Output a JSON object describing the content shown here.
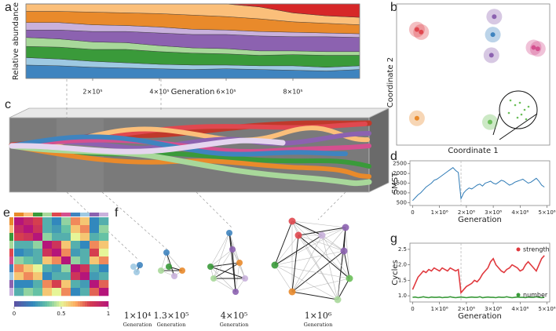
{
  "chart_data": [
    {
      "type": "stream",
      "panel": "a",
      "ylabel": "Relative abundance",
      "xlabel": "Generation",
      "xlim": [
        0,
        1000000
      ],
      "ylim": [
        0,
        1
      ],
      "xticks": [
        {
          "value": 200000,
          "label": "2×10⁵"
        },
        {
          "value": 400000,
          "label": "4×10⁵"
        },
        {
          "value": 600000,
          "label": "6×10⁵"
        },
        {
          "value": 800000,
          "label": "8×10⁵"
        }
      ],
      "x": [
        0,
        100000,
        200000,
        300000,
        400000,
        500000,
        600000,
        700000,
        800000,
        900000,
        1000000
      ],
      "series": [
        {
          "color": "#3f84bf",
          "values": [
            0.18,
            0.17,
            0.15,
            0.14,
            0.13,
            0.12,
            0.13,
            0.12,
            0.11,
            0.1,
            0.12
          ]
        },
        {
          "color": "#9ec9e2",
          "values": [
            0.1,
            0.09,
            0.08,
            0.07,
            0.06,
            0.06,
            0.05,
            0.05,
            0.06,
            0.05,
            0.05
          ]
        },
        {
          "color": "#3a9a3a",
          "values": [
            0.15,
            0.16,
            0.16,
            0.18,
            0.17,
            0.16,
            0.15,
            0.14,
            0.15,
            0.16,
            0.14
          ]
        },
        {
          "color": "#a8d89a",
          "values": [
            0.12,
            0.11,
            0.1,
            0.09,
            0.08,
            0.07,
            0.07,
            0.06,
            0.05,
            0.05,
            0.05
          ]
        },
        {
          "color": "#8c62b0",
          "values": [
            0.1,
            0.12,
            0.14,
            0.15,
            0.17,
            0.18,
            0.19,
            0.2,
            0.19,
            0.2,
            0.19
          ]
        },
        {
          "color": "#c9b1dc",
          "values": [
            0.1,
            0.1,
            0.09,
            0.08,
            0.08,
            0.07,
            0.06,
            0.06,
            0.06,
            0.05,
            0.05
          ]
        },
        {
          "color": "#e98a2b",
          "values": [
            0.15,
            0.15,
            0.17,
            0.17,
            0.18,
            0.19,
            0.18,
            0.17,
            0.14,
            0.13,
            0.12
          ]
        },
        {
          "color": "#fbbf7a",
          "values": [
            0.1,
            0.1,
            0.11,
            0.12,
            0.13,
            0.15,
            0.17,
            0.16,
            0.12,
            0.1,
            0.1
          ]
        },
        {
          "color": "#d62728",
          "values": [
            0,
            0,
            0,
            0,
            0,
            0,
            0,
            0.04,
            0.12,
            0.16,
            0.18
          ]
        }
      ]
    },
    {
      "type": "scatter",
      "panel": "b",
      "xlabel": "Coordinate 1",
      "ylabel": "Coordinate 2",
      "xlim": [
        0,
        10
      ],
      "ylim": [
        0,
        10
      ],
      "x": [
        1.0,
        1.3,
        6.5,
        6.4,
        6.3,
        9.3,
        9.6,
        1.0,
        6.2
      ],
      "y": [
        8.5,
        8.3,
        9.5,
        8.1,
        6.5,
        7.1,
        7.0,
        1.6,
        1.3
      ],
      "colors": [
        "#e0484f",
        "#e0484f",
        "#8c62b0",
        "#3f84bf",
        "#8c62b0",
        "#d4508f",
        "#d4508f",
        "#e98a2b",
        "#6cbf5a"
      ]
    },
    {
      "type": "illustration",
      "panel": "c"
    },
    {
      "type": "line",
      "panel": "d",
      "xlabel": "Generation",
      "ylabel": "SMST",
      "xlim": [
        -100000,
        5100000
      ],
      "ylim": [
        350,
        2650
      ],
      "vline": 1800000,
      "xticks": [
        0,
        {
          "value": 1000000,
          "label": "1×10⁶"
        },
        {
          "value": 2000000,
          "label": "2×10⁶"
        },
        {
          "value": 3000000,
          "label": "3×10⁶"
        },
        {
          "value": 4000000,
          "label": "4×10⁶"
        },
        {
          "value": 5000000,
          "label": "5×10⁶"
        }
      ],
      "yticks": [
        500,
        1000,
        1500,
        2000,
        2500
      ],
      "x": [
        0,
        100000,
        200000,
        300000,
        400000,
        500000,
        600000,
        700000,
        800000,
        900000,
        1000000,
        1100000,
        1200000,
        1300000,
        1400000,
        1500000,
        1600000,
        1700000,
        1800000,
        1900000,
        2000000,
        2100000,
        2200000,
        2300000,
        2400000,
        2500000,
        2600000,
        2700000,
        2800000,
        2900000,
        3000000,
        3100000,
        3200000,
        3300000,
        3400000,
        3500000,
        3600000,
        3700000,
        3800000,
        3900000,
        4000000,
        4100000,
        4200000,
        4300000,
        4400000,
        4500000,
        4600000,
        4700000,
        4800000,
        4900000
      ],
      "series": [
        {
          "color": "#2f7bb6",
          "values": [
            600,
            750,
            900,
            1000,
            1150,
            1300,
            1400,
            1500,
            1650,
            1700,
            1800,
            1900,
            2000,
            2100,
            2200,
            2300,
            2150,
            2050,
            700,
            1000,
            1150,
            1250,
            1200,
            1300,
            1400,
            1450,
            1350,
            1500,
            1550,
            1600,
            1500,
            1450,
            1550,
            1650,
            1600,
            1500,
            1400,
            1450,
            1550,
            1600,
            1650,
            1700,
            1600,
            1500,
            1550,
            1650,
            1750,
            1600,
            1400,
            1300
          ]
        }
      ]
    },
    {
      "type": "heatmap",
      "panel": "e",
      "clim": [
        0,
        1
      ],
      "cticks": [
        0,
        0.5,
        1
      ],
      "matrix": [
        [
          1,
          0.9,
          0.8,
          0.3,
          0.2,
          0.4,
          0.7,
          0.6,
          0.2,
          0.3
        ],
        [
          0.9,
          1,
          0.85,
          0.3,
          0.25,
          0.35,
          0.6,
          0.7,
          0.2,
          0.4
        ],
        [
          0.8,
          0.85,
          1,
          0.4,
          0.3,
          0.3,
          0.5,
          0.6,
          0.3,
          0.35
        ],
        [
          0.3,
          0.3,
          0.4,
          1,
          0.85,
          0.6,
          0.3,
          0.2,
          0.7,
          0.6
        ],
        [
          0.2,
          0.25,
          0.3,
          0.85,
          1,
          0.7,
          0.25,
          0.3,
          0.8,
          0.5
        ],
        [
          0.4,
          0.35,
          0.3,
          0.6,
          0.7,
          1,
          0.4,
          0.3,
          0.6,
          0.7
        ],
        [
          0.7,
          0.6,
          0.5,
          0.3,
          0.25,
          0.4,
          1,
          0.85,
          0.3,
          0.2
        ],
        [
          0.6,
          0.7,
          0.6,
          0.2,
          0.3,
          0.3,
          0.85,
          1,
          0.25,
          0.3
        ],
        [
          0.2,
          0.2,
          0.3,
          0.7,
          0.8,
          0.6,
          0.3,
          0.25,
          1,
          0.75
        ],
        [
          0.3,
          0.4,
          0.35,
          0.6,
          0.5,
          0.7,
          0.2,
          0.3,
          0.75,
          1
        ]
      ]
    },
    {
      "type": "network",
      "panel": "f",
      "labels": [
        {
          "value": "1×10⁴",
          "caption": "Generation"
        },
        {
          "value": "1.3×10⁵",
          "caption": "Generation"
        },
        {
          "value": "4×10⁵",
          "caption": "Generation"
        },
        {
          "value": "1×10⁶",
          "caption": "Generation"
        }
      ]
    },
    {
      "type": "line",
      "panel": "g",
      "xlabel": "Generation",
      "ylabel": "Cycles",
      "xlim": [
        -100000,
        5100000
      ],
      "ylim": [
        0.8,
        2.7
      ],
      "vline": 1800000,
      "xticks": [
        0,
        {
          "value": 1000000,
          "label": "1×10⁶"
        },
        {
          "value": 2000000,
          "label": "2×10⁶"
        },
        {
          "value": 3000000,
          "label": "3×10⁶"
        },
        {
          "value": 4000000,
          "label": "4×10⁶"
        },
        {
          "value": 5000000,
          "label": "5×10⁶"
        }
      ],
      "yticks": [
        {
          "value": 1,
          "label": "1.0"
        },
        1.5,
        {
          "value": 2,
          "label": "2.0"
        },
        2.5
      ],
      "x": [
        0,
        100000,
        200000,
        300000,
        400000,
        500000,
        600000,
        700000,
        800000,
        900000,
        1000000,
        1100000,
        1200000,
        1300000,
        1400000,
        1500000,
        1600000,
        1700000,
        1800000,
        1900000,
        2000000,
        2100000,
        2200000,
        2300000,
        2400000,
        2500000,
        2600000,
        2700000,
        2800000,
        2900000,
        3000000,
        3100000,
        3200000,
        3300000,
        3400000,
        3500000,
        3600000,
        3700000,
        3800000,
        3900000,
        4000000,
        4100000,
        4200000,
        4300000,
        4400000,
        4500000,
        4600000,
        4700000,
        4800000,
        4900000
      ],
      "series": [
        {
          "name": "strength",
          "color": "#e0393e",
          "values": [
            1.2,
            1.4,
            1.6,
            1.7,
            1.8,
            1.75,
            1.85,
            1.8,
            1.9,
            1.85,
            1.8,
            1.9,
            1.85,
            1.8,
            1.9,
            1.85,
            1.8,
            1.85,
            1.1,
            1.2,
            1.3,
            1.35,
            1.4,
            1.5,
            1.45,
            1.55,
            1.7,
            1.8,
            1.9,
            2.1,
            2.2,
            2.0,
            1.9,
            1.8,
            1.75,
            1.85,
            1.9,
            2.0,
            1.95,
            1.9,
            1.8,
            1.85,
            2.0,
            2.1,
            2.0,
            1.9,
            1.8,
            2.0,
            2.2,
            2.3
          ]
        },
        {
          "name": "number",
          "color": "#3a9a3a",
          "values": [
            0.95,
            0.96,
            0.94,
            0.95,
            0.97,
            0.95,
            0.94,
            0.96,
            0.95,
            0.95,
            0.96,
            0.94,
            0.95,
            0.95,
            0.97,
            0.95,
            0.94,
            0.95,
            0.96,
            0.95,
            0.94,
            0.95,
            0.96,
            0.95,
            0.95,
            0.97,
            0.94,
            0.95,
            0.96,
            0.95,
            0.95,
            0.94,
            0.96,
            0.95,
            0.95,
            0.97,
            0.95,
            0.94,
            0.95,
            0.96,
            0.95,
            0.95,
            0.94,
            0.96,
            0.95,
            0.95,
            0.97,
            0.95,
            0.94,
            0.95
          ]
        }
      ]
    }
  ]
}
